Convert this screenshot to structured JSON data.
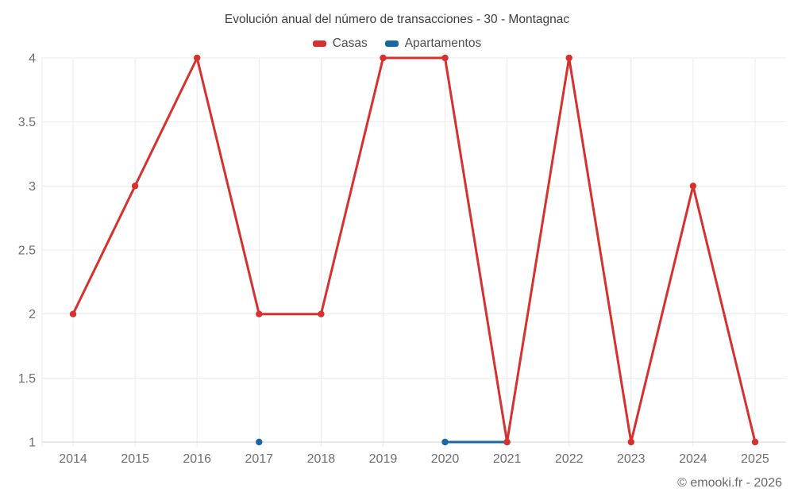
{
  "chart_data": {
    "type": "line",
    "title": "Evolución anual del número de transacciones - 30 - Montagnac",
    "categories": [
      "2014",
      "2015",
      "2016",
      "2017",
      "2018",
      "2019",
      "2020",
      "2021",
      "2022",
      "2023",
      "2024",
      "2025"
    ],
    "series": [
      {
        "name": "Casas",
        "color": "#d7312f",
        "values": [
          2,
          3,
          4,
          2,
          2,
          4,
          4,
          1,
          4,
          1,
          3,
          1
        ]
      },
      {
        "name": "Apartamentos",
        "color": "#1768a5",
        "values": [
          null,
          null,
          null,
          1,
          null,
          null,
          1,
          1,
          null,
          null,
          null,
          null
        ]
      }
    ],
    "xlabel": "",
    "ylabel": "",
    "ylim": [
      1,
      4
    ],
    "yticks": [
      1,
      1.5,
      2,
      2.5,
      3,
      3.5,
      4
    ],
    "ytick_labels": [
      "1",
      "1.5",
      "2",
      "2.5",
      "3",
      "3.5",
      "4"
    ],
    "legend_position": "top",
    "grid": true,
    "colors": {
      "grid": "#ebebeb",
      "axis": "#d4d4d4",
      "tick_label": "#6e6e6e",
      "title": "#3d3d3d",
      "legend_text": "#4f4f4f"
    }
  },
  "footer": {
    "text": "© emooki.fr - 2026"
  }
}
